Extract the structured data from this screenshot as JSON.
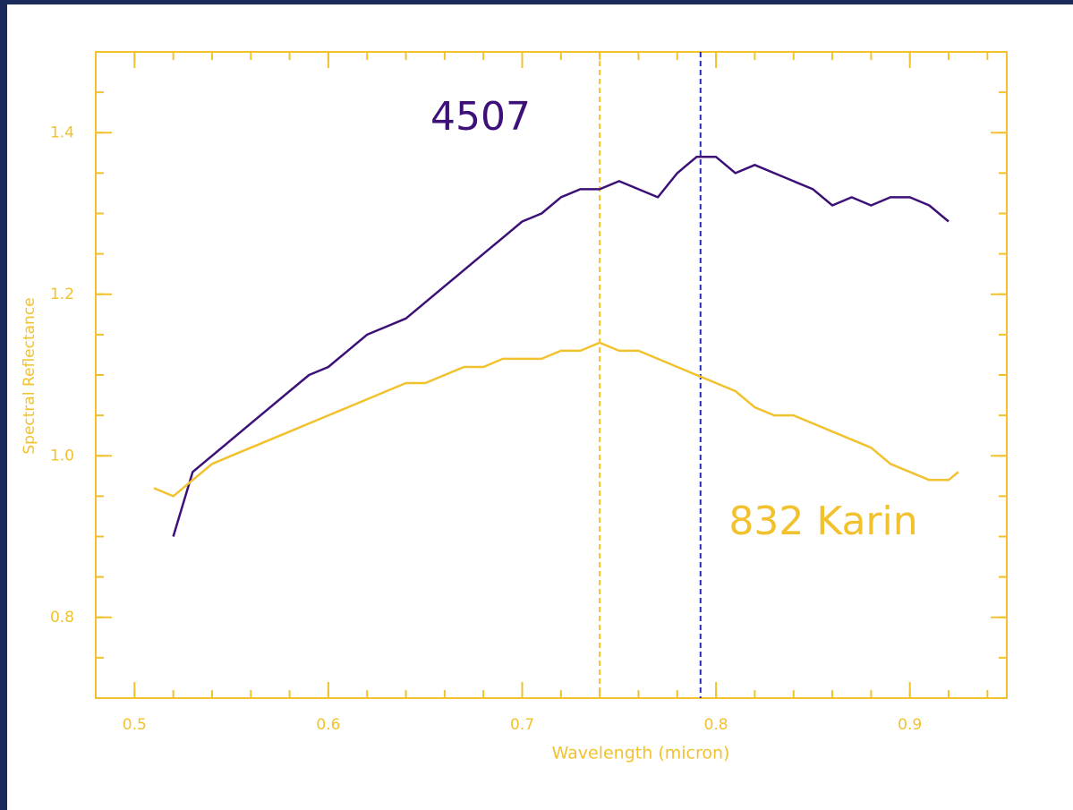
{
  "chart_data": {
    "type": "line",
    "xlabel": "Wavelength (micron)",
    "ylabel": "Spectral Reflectance",
    "x": [
      0.51,
      0.52,
      0.53,
      0.54,
      0.55,
      0.56,
      0.57,
      0.58,
      0.59,
      0.6,
      0.61,
      0.62,
      0.63,
      0.64,
      0.65,
      0.66,
      0.67,
      0.68,
      0.69,
      0.7,
      0.71,
      0.72,
      0.73,
      0.74,
      0.75,
      0.76,
      0.77,
      0.78,
      0.79,
      0.8,
      0.81,
      0.82,
      0.83,
      0.84,
      0.85,
      0.86,
      0.87,
      0.88,
      0.89,
      0.9,
      0.91,
      0.92,
      0.925
    ],
    "series": [
      {
        "name": "4507",
        "color": "#3d1078",
        "values": [
          null,
          0.9,
          0.98,
          1.0,
          1.02,
          1.04,
          1.06,
          1.08,
          1.1,
          1.11,
          1.13,
          1.15,
          1.16,
          1.17,
          1.19,
          1.21,
          1.23,
          1.25,
          1.27,
          1.29,
          1.3,
          1.32,
          1.33,
          1.33,
          1.34,
          1.33,
          1.32,
          1.35,
          1.37,
          1.37,
          1.35,
          1.36,
          1.35,
          1.34,
          1.33,
          1.31,
          1.32,
          1.31,
          1.32,
          1.32,
          1.31,
          1.29,
          null
        ]
      },
      {
        "name": "832 Karin",
        "color": "#f2c12e",
        "values": [
          0.96,
          0.95,
          0.97,
          0.99,
          1.0,
          1.01,
          1.02,
          1.03,
          1.04,
          1.05,
          1.06,
          1.07,
          1.08,
          1.09,
          1.09,
          1.1,
          1.11,
          1.11,
          1.12,
          1.12,
          1.12,
          1.13,
          1.13,
          1.14,
          1.13,
          1.13,
          1.12,
          1.11,
          1.1,
          1.09,
          1.08,
          1.06,
          1.05,
          1.05,
          1.04,
          1.03,
          1.02,
          1.01,
          0.99,
          0.98,
          0.97,
          0.97,
          0.98
        ]
      }
    ],
    "vlines": [
      {
        "x": 0.74,
        "color": "#f2c12e"
      },
      {
        "x": 0.792,
        "color": "#2a2ab8"
      }
    ],
    "xlim": [
      0.48,
      0.95
    ],
    "ylim": [
      0.7,
      1.5
    ],
    "xticks": [
      0.5,
      0.6,
      0.7,
      0.8,
      0.9
    ],
    "yticks": [
      0.8,
      {
        "value": 1,
        "label": "1.0"
      },
      1.2,
      1.4
    ],
    "axis_color": "#f2c12e",
    "grid": false
  }
}
